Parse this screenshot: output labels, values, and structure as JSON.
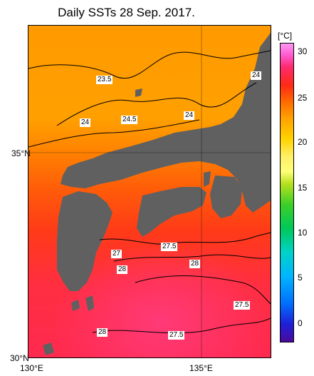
{
  "title": "Daily SSTs 28 Sep. 2017.",
  "map": {
    "lon_range": [
      130,
      137
    ],
    "lat_range": [
      30,
      37
    ],
    "x_ticks": [
      "130°E",
      "135°E"
    ],
    "y_ticks": [
      "35°N",
      "30°N"
    ],
    "land_color": "#606060",
    "graticule": "on"
  },
  "colorbar": {
    "unit": "[°C]",
    "ticks": [
      "30",
      "25",
      "20",
      "15",
      "10",
      "5",
      "0"
    ],
    "range": [
      -2,
      32
    ],
    "colors": [
      "#4b0a9a",
      "#1f1fd6",
      "#0070ff",
      "#00b4ff",
      "#00d2c8",
      "#00c85a",
      "#3ccf28",
      "#b8e020",
      "#ffff78",
      "#fff068",
      "#ffd200",
      "#ffa000",
      "#ff6e00",
      "#ff2a14",
      "#ff2a6e",
      "#ff5ad2",
      "#ff9cf0"
    ]
  },
  "contour_labels": [
    "23.5",
    "24",
    "24.5",
    "24",
    "24",
    "27",
    "27.5",
    "28",
    "28",
    "27.5",
    "28",
    "27.5"
  ]
}
